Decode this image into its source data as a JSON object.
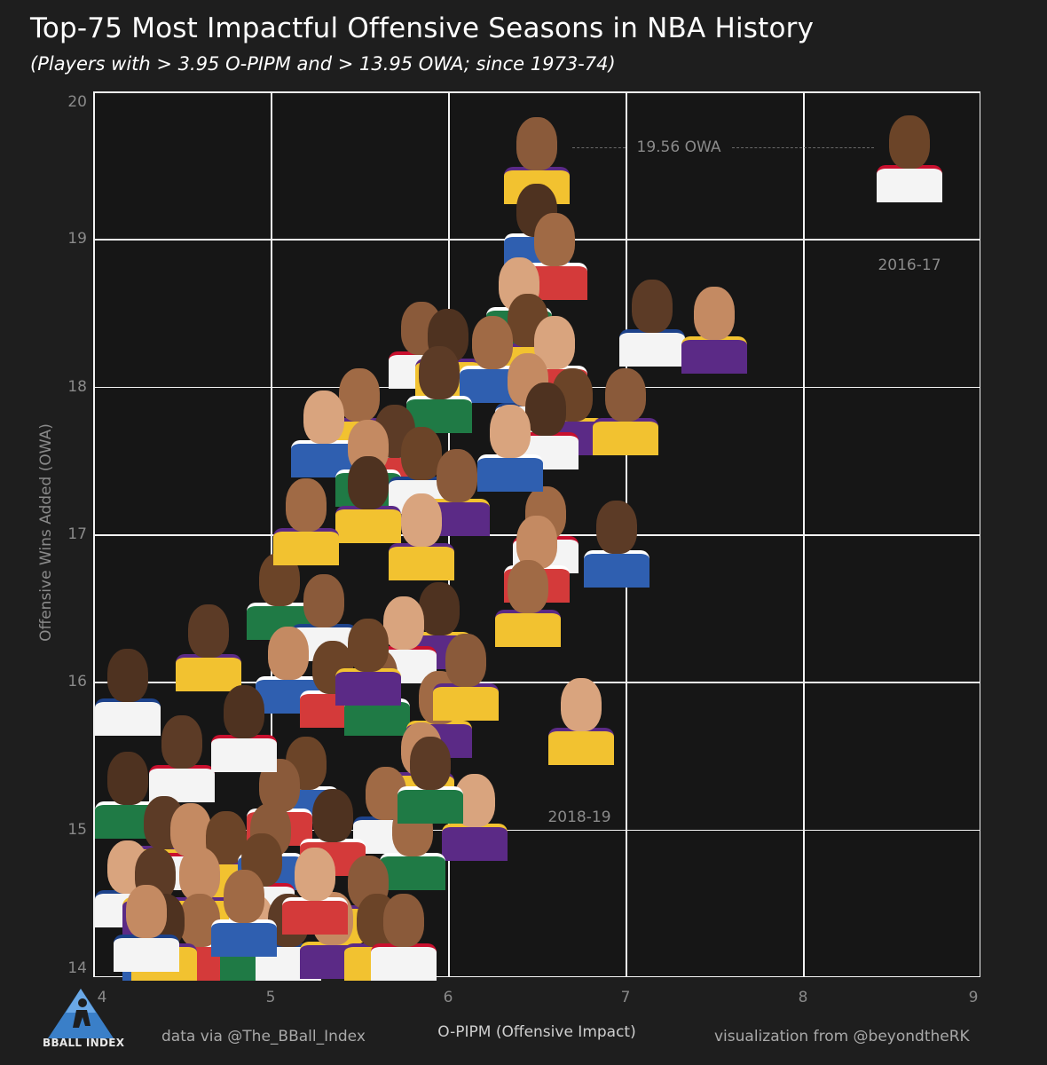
{
  "chart_data": {
    "type": "scatter",
    "title": "Top-75 Most Impactful Offensive Seasons in NBA History",
    "subtitle": "(Players with > 3.95 O-PIPM and > 13.95 OWA; since 1973-74)",
    "xlabel": "O-PIPM (Offensive Impact)",
    "ylabel": "Offensive Wins Added (OWA)",
    "xlim": [
      4,
      9
    ],
    "ylim": [
      14,
      20
    ],
    "xticks": [
      "4",
      "5",
      "6",
      "7",
      "8",
      "9"
    ],
    "yticks": [
      "14",
      "15",
      "16",
      "17",
      "18",
      "19",
      "20"
    ],
    "grid": true,
    "annotations": [
      {
        "text": "19.56 OWA",
        "x": 7.3,
        "y": 19.62
      },
      {
        "text": "2016-17",
        "x": 8.6,
        "y": 19.1
      },
      {
        "text": "2018-19",
        "x": 6.74,
        "y": 15.36
      }
    ],
    "points": [
      {
        "x": 8.6,
        "y": 19.56
      },
      {
        "x": 6.5,
        "y": 19.55
      },
      {
        "x": 6.5,
        "y": 19.1
      },
      {
        "x": 6.6,
        "y": 18.9
      },
      {
        "x": 6.4,
        "y": 18.6
      },
      {
        "x": 7.15,
        "y": 18.45
      },
      {
        "x": 7.5,
        "y": 18.4
      },
      {
        "x": 6.45,
        "y": 18.35
      },
      {
        "x": 5.85,
        "y": 18.3
      },
      {
        "x": 6.0,
        "y": 18.25
      },
      {
        "x": 6.25,
        "y": 18.2
      },
      {
        "x": 6.6,
        "y": 18.2
      },
      {
        "x": 5.95,
        "y": 18.0
      },
      {
        "x": 6.45,
        "y": 17.95
      },
      {
        "x": 6.7,
        "y": 17.85
      },
      {
        "x": 7.0,
        "y": 17.85
      },
      {
        "x": 6.55,
        "y": 17.75
      },
      {
        "x": 5.5,
        "y": 17.85
      },
      {
        "x": 5.3,
        "y": 17.7
      },
      {
        "x": 5.7,
        "y": 17.6
      },
      {
        "x": 5.55,
        "y": 17.5
      },
      {
        "x": 5.85,
        "y": 17.45
      },
      {
        "x": 6.05,
        "y": 17.3
      },
      {
        "x": 5.55,
        "y": 17.25
      },
      {
        "x": 6.55,
        "y": 17.05
      },
      {
        "x": 5.85,
        "y": 17.0
      },
      {
        "x": 6.95,
        "y": 16.95
      },
      {
        "x": 6.5,
        "y": 16.85
      },
      {
        "x": 5.05,
        "y": 16.6
      },
      {
        "x": 5.3,
        "y": 16.45
      },
      {
        "x": 5.95,
        "y": 16.4
      },
      {
        "x": 6.45,
        "y": 16.55
      },
      {
        "x": 5.75,
        "y": 16.3
      },
      {
        "x": 4.65,
        "y": 16.25
      },
      {
        "x": 5.1,
        "y": 16.1
      },
      {
        "x": 5.35,
        "y": 16.0
      },
      {
        "x": 5.6,
        "y": 15.95
      },
      {
        "x": 4.1,
        "y": 15.95
      },
      {
        "x": 5.95,
        "y": 15.8
      },
      {
        "x": 6.75,
        "y": 15.75
      },
      {
        "x": 4.5,
        "y": 15.5
      },
      {
        "x": 5.85,
        "y": 15.45
      },
      {
        "x": 5.2,
        "y": 15.35
      },
      {
        "x": 5.05,
        "y": 15.2
      },
      {
        "x": 4.1,
        "y": 15.25
      },
      {
        "x": 5.65,
        "y": 15.15
      },
      {
        "x": 6.15,
        "y": 15.1
      },
      {
        "x": 4.4,
        "y": 14.95
      },
      {
        "x": 4.55,
        "y": 14.9
      },
      {
        "x": 4.75,
        "y": 14.85
      },
      {
        "x": 5.0,
        "y": 14.9
      },
      {
        "x": 5.35,
        "y": 15.0
      },
      {
        "x": 5.8,
        "y": 14.9
      },
      {
        "x": 4.1,
        "y": 14.65
      },
      {
        "x": 4.35,
        "y": 14.6
      },
      {
        "x": 4.6,
        "y": 14.6
      },
      {
        "x": 4.95,
        "y": 14.7
      },
      {
        "x": 5.55,
        "y": 14.55
      },
      {
        "x": 4.35,
        "y": 14.2
      },
      {
        "x": 4.6,
        "y": 14.15
      },
      {
        "x": 4.9,
        "y": 14.1
      },
      {
        "x": 5.1,
        "y": 14.2
      },
      {
        "x": 5.35,
        "y": 14.3
      },
      {
        "x": 5.6,
        "y": 14.25
      },
      {
        "x": 5.75,
        "y": 14.05
      },
      {
        "x": 4.4,
        "y": 14.05
      },
      {
        "x": 4.85,
        "y": 14.45
      },
      {
        "x": 5.25,
        "y": 14.6
      },
      {
        "x": 5.9,
        "y": 15.35
      },
      {
        "x": 4.3,
        "y": 14.35
      },
      {
        "x": 5.55,
        "y": 16.15
      },
      {
        "x": 6.1,
        "y": 16.05
      },
      {
        "x": 4.85,
        "y": 15.7
      },
      {
        "x": 5.2,
        "y": 17.1
      },
      {
        "x": 6.35,
        "y": 17.6
      }
    ]
  },
  "credits": {
    "data": "data via @The_BBall_Index",
    "viz": "visualization from @beyondtheRK",
    "logo_text": "BBALL INDEX"
  },
  "colors": {
    "background": "#1e1e1e",
    "plot_background": "#161616",
    "grid": "#f2f2f2",
    "axis_text": "#8a8a8a"
  }
}
